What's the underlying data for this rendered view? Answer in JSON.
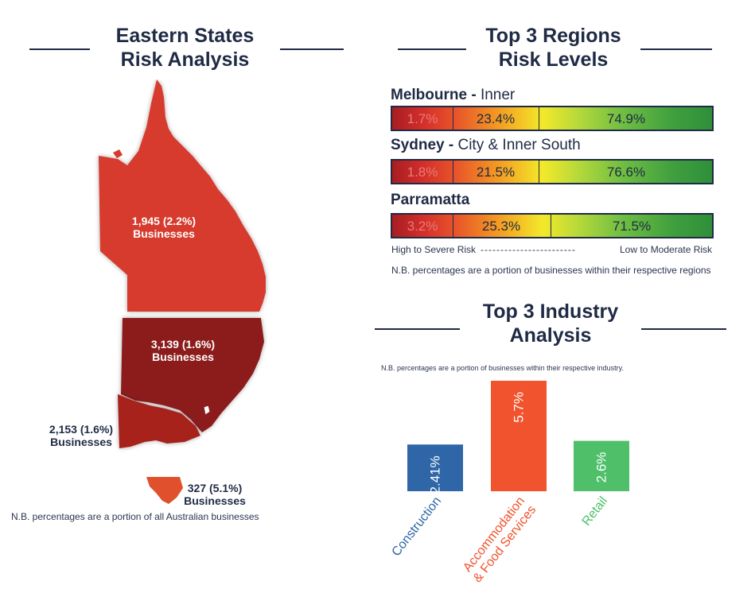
{
  "left": {
    "heading_line1": "Eastern States",
    "heading_line2": "Risk Analysis",
    "states": [
      {
        "value": "1,945 (2.2%)",
        "label": "Businesses"
      },
      {
        "value": "3,139 (1.6%)",
        "label": "Businesses"
      },
      {
        "value": "2,153 (1.6%)",
        "label": "Businesses"
      },
      {
        "value": "327 (5.1%)",
        "label": "Businesses"
      }
    ],
    "note": "N.B. percentages are a portion of all Australian businesses"
  },
  "regions": {
    "heading_line1": "Top 3 Regions",
    "heading_line2": "Risk Levels",
    "items": [
      {
        "name": "Melbourne",
        "sep": " - ",
        "sub": "Inner",
        "segments": [
          {
            "label": "1.7%"
          },
          {
            "label": "23.4%"
          },
          {
            "label": "74.9%"
          }
        ]
      },
      {
        "name": "Sydney",
        "sep": " - ",
        "sub": "City & Inner South",
        "segments": [
          {
            "label": "1.8%"
          },
          {
            "label": "21.5%"
          },
          {
            "label": "76.6%"
          }
        ]
      },
      {
        "name": "Parramatta",
        "sep": "",
        "sub": "",
        "segments": [
          {
            "label": "3.2%"
          },
          {
            "label": "25.3%"
          },
          {
            "label": "71.5%"
          }
        ]
      }
    ],
    "legend_left": "High to Severe Risk",
    "legend_mid": "------------------------",
    "legend_right": "Low to Moderate Risk",
    "note": "N.B. percentages are a portion of businesses within their respective regions"
  },
  "industry": {
    "heading_line1": "Top 3 Industry",
    "heading_line2": "Analysis",
    "note": "N.B. percentages are a portion of businesses within their respective industry."
  },
  "chart_data": {
    "type": "bar",
    "title": "Top 3 Industry Analysis",
    "categories": [
      "Construction",
      "Accommodation & Food Services",
      "Retail"
    ],
    "category_lines": [
      [
        "Construction"
      ],
      [
        "Accommodation",
        "& Food Services"
      ],
      [
        "Retail"
      ]
    ],
    "values": [
      2.41,
      5.7,
      2.6
    ],
    "value_labels": [
      "2.41%",
      "5.7%",
      "2.6%"
    ],
    "colors": [
      "#2e66a8",
      "#f0532d",
      "#4fbf6a"
    ],
    "ylim": [
      0,
      5.7
    ],
    "grid": false
  },
  "colors": {
    "navy": "#1f2a44",
    "qld": "#d63a2e",
    "nsw": "#8c1a1e",
    "vic": "#a8221e",
    "tas": "#e0502c"
  }
}
